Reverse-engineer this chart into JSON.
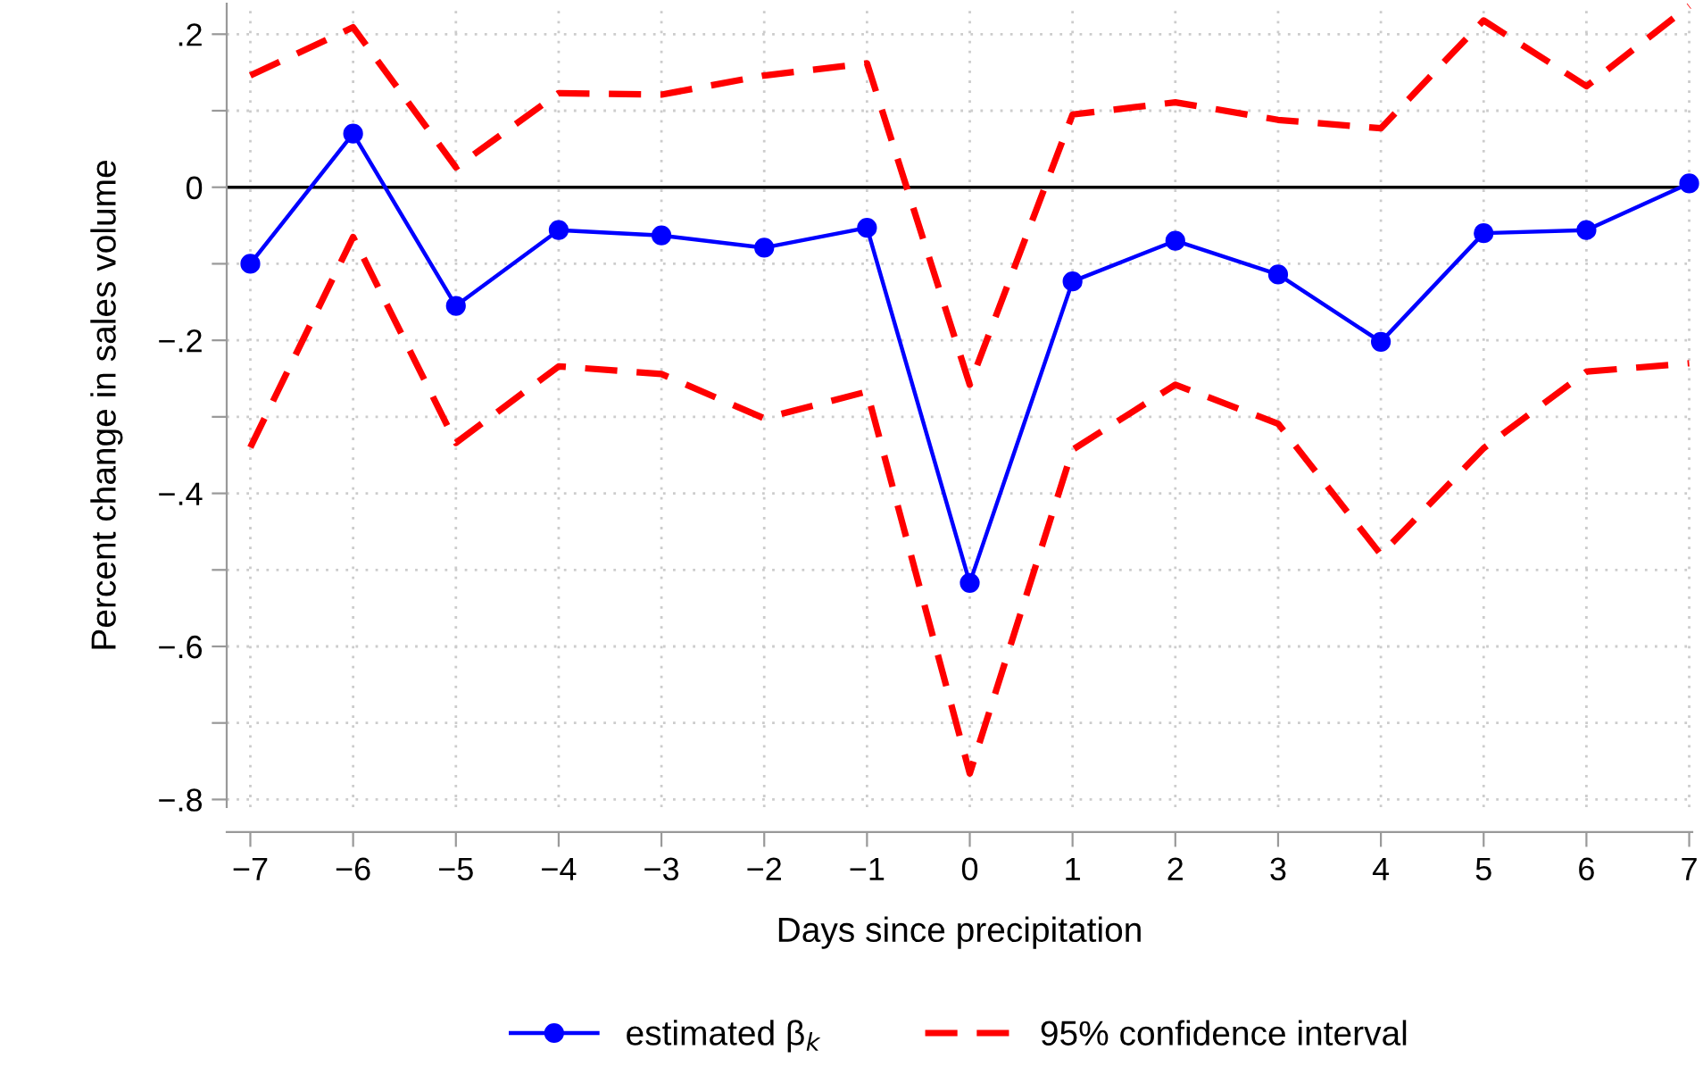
{
  "chart_data": {
    "type": "line",
    "xlabel": "Days since precipitation",
    "ylabel": "Percent change in sales volume",
    "x": [
      -7,
      -6,
      -5,
      -4,
      -3,
      -2,
      -1,
      0,
      1,
      2,
      3,
      4,
      5,
      6,
      7
    ],
    "series": [
      {
        "name": "estimated β$_{k}$",
        "color": "#0000ff",
        "marker": "circle",
        "line_style": "solid",
        "values": [
          -0.1,
          0.07,
          -0.155,
          -0.056,
          -0.063,
          -0.079,
          -0.053,
          -0.517,
          -0.123,
          -0.07,
          -0.114,
          -0.202,
          -0.06,
          -0.056,
          0.005
        ]
      },
      {
        "name": "95% confidence interval",
        "color": "#ff0000",
        "marker": "none",
        "line_style": "dashed",
        "values": [
          0.146,
          0.209,
          0.026,
          0.123,
          0.121,
          0.146,
          0.162,
          -0.258,
          0.095,
          0.111,
          0.088,
          0.077,
          0.218,
          0.132,
          0.237
        ]
      },
      {
        "color": "#ff0000",
        "marker": "none",
        "line_style": "dashed",
        "values": [
          -0.34,
          -0.065,
          -0.334,
          -0.234,
          -0.244,
          -0.302,
          -0.267,
          -0.766,
          -0.343,
          -0.258,
          -0.309,
          -0.48,
          -0.341,
          -0.241,
          -0.23
        ]
      }
    ],
    "xlim": [
      -7.23,
      7.03
    ],
    "ylim": [
      -0.81,
      0.24
    ],
    "xticks": [
      {
        "value": -7,
        "label": "−7"
      },
      {
        "value": -6,
        "label": "−6"
      },
      {
        "value": -5,
        "label": "−5"
      },
      {
        "value": -4,
        "label": "−4"
      },
      {
        "value": -3,
        "label": "−3"
      },
      {
        "value": -2,
        "label": "−2"
      },
      {
        "value": -1,
        "label": "−1"
      },
      0,
      1,
      2,
      3,
      4,
      5,
      6,
      7
    ],
    "yticks": [
      {
        "value": -0.8,
        "label": "−.8"
      },
      {
        "value": -0.7,
        "label": null
      },
      {
        "value": -0.6,
        "label": "−.6"
      },
      {
        "value": -0.5,
        "label": null
      },
      {
        "value": -0.4,
        "label": "−.4"
      },
      {
        "value": -0.3,
        "label": null
      },
      {
        "value": -0.2,
        "label": "−.2"
      },
      {
        "value": -0.1,
        "label": null
      },
      0,
      {
        "value": 0.1,
        "label": null
      },
      {
        "value": 0.2,
        "label": ".2"
      }
    ],
    "ref_lines": [
      {
        "axis": "y",
        "value": 0,
        "color": "#000000",
        "line_style": "solid"
      }
    ],
    "grid": true,
    "legend": "bottom"
  }
}
